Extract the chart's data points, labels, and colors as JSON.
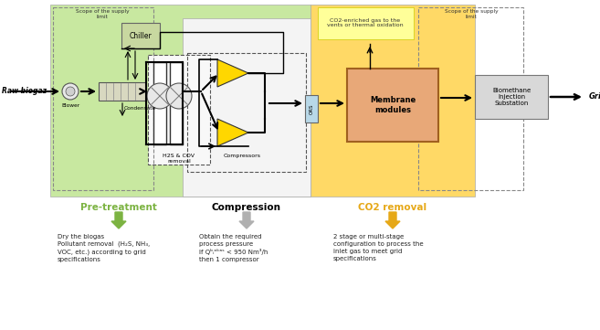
{
  "bg_color": "#ffffff",
  "green_bg": "#c8e8a0",
  "yellow_bg": "#ffd966",
  "light_yellow_bg": "#ffff99",
  "chiller_color": "#c8d8a0",
  "membrane_color": "#e8a878",
  "ors_color": "#b8d8e8",
  "substation_color": "#d8d8d8",
  "pre_treatment_color": "#7cb342",
  "compression_color": "#000000",
  "co2_color": "#e6a817",
  "raw_biogaz": "Raw biogaz",
  "grid": "Grid",
  "blower": "Blower",
  "condensate": "Condensate",
  "chiller": "Chiller",
  "h2s_removal": "H2S & COV\nremoval",
  "compressors": "Compressors",
  "ors_label": "ORS",
  "membrane_label": "Membrane\nmodules",
  "substation_label": "Biomethane\nInjection\nSubstation",
  "scope1": "Scope of the supply\nlimit",
  "scope2": "Scope of the supply\nlimit",
  "co2_enriched": "CO2-enriched gas to the\nvents or thermal oxidation",
  "pre_treatment_label": "Pre-treatment",
  "compression_label": "Compression",
  "co2_label": "CO2 removal",
  "desc_pretreatment": "Dry the biogas\nPollutant removal  (H₂S, NH₃,\nVOC, etc.) according to grid\nspecifications",
  "desc_compression": "Obtain the required\nprocess pressure\nIf Qᵇᵢᵒᵏᵃˢ < 950 Nm³/h\nthen 1 compressor",
  "desc_co2": "2 stage or multi-stage\nconfiguration to process the\ninlet gas to meet grid\nspecifications"
}
